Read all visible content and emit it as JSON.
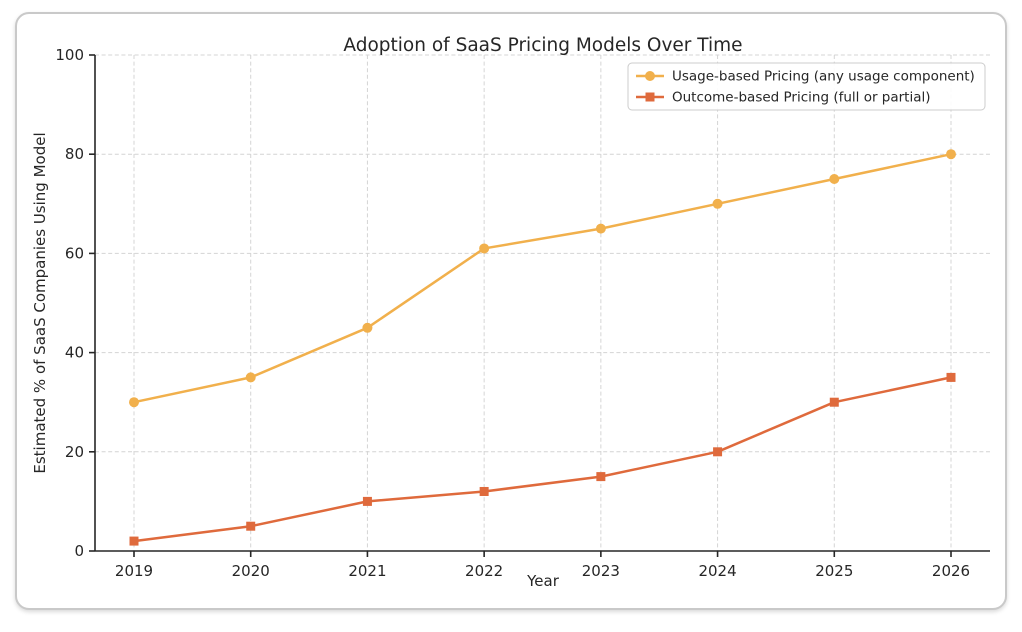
{
  "chart_data": {
    "type": "line",
    "title": "Adoption of SaaS Pricing Models Over Time",
    "xlabel": "Year",
    "ylabel": "Estimated % of SaaS Companies Using Model",
    "x": [
      2019,
      2020,
      2021,
      2022,
      2023,
      2024,
      2025,
      2026
    ],
    "series": [
      {
        "name": "Usage-based Pricing (any usage component)",
        "marker": "circle",
        "color": "#F1B04C",
        "values": [
          30,
          35,
          45,
          61,
          65,
          70,
          75,
          80
        ]
      },
      {
        "name": "Outcome-based Pricing (full or partial)",
        "marker": "square",
        "color": "#DF6A3C",
        "values": [
          2,
          5,
          10,
          12,
          15,
          20,
          30,
          35
        ]
      }
    ],
    "ylim": [
      0,
      100
    ],
    "yticks": [
      0,
      20,
      40,
      60,
      80,
      100
    ],
    "grid": {
      "style": "dashed",
      "color": "#d4d4d4"
    },
    "legend": {
      "position": "upper right"
    },
    "axis_color": "#262626",
    "text_color": "#262626",
    "background": "#ffffff"
  }
}
